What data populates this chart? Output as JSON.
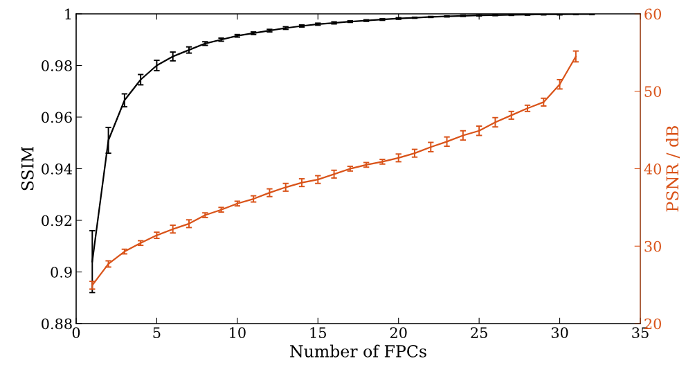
{
  "chart_data": {
    "type": "line",
    "xlabel": "Number of FPCs",
    "ylabel": "SSIM",
    "y2label": "PSNR / dB",
    "xlim": [
      0,
      35
    ],
    "xticks": [
      0,
      5,
      10,
      15,
      20,
      25,
      30,
      35
    ],
    "ylim": [
      0.88,
      1
    ],
    "yticks": [
      0.88,
      0.9,
      0.92,
      0.94,
      0.96,
      0.98,
      1
    ],
    "y2lim": [
      20,
      60
    ],
    "y2ticks": [
      20,
      30,
      40,
      50,
      60
    ],
    "grid": false,
    "legend": false,
    "marker": "none",
    "line_style": "solid",
    "series": [
      {
        "color": "#000000",
        "x": [
          1,
          2,
          3,
          4,
          5,
          6,
          7,
          8,
          9,
          10,
          11,
          12,
          13,
          14,
          15,
          16,
          17,
          18,
          19,
          20,
          21,
          22,
          23,
          24,
          25,
          26,
          27,
          28,
          29,
          30,
          31,
          32
        ],
        "values": [
          0.904,
          0.951,
          0.9665,
          0.9745,
          0.98,
          0.9835,
          0.986,
          0.9885,
          0.99,
          0.9915,
          0.9925,
          0.9935,
          0.9945,
          0.9953,
          0.996,
          0.9965,
          0.997,
          0.9974,
          0.9978,
          0.9982,
          0.9985,
          0.9988,
          0.999,
          0.9992,
          0.9994,
          0.9995,
          0.9996,
          0.9997,
          0.9998,
          0.9998,
          0.9999,
          0.9999
        ],
        "errors": [
          0.012,
          0.005,
          0.0025,
          0.002,
          0.002,
          0.0017,
          0.0012,
          0.0007,
          0.0006,
          0.0005,
          0.0005,
          0.0005,
          0.0005,
          0.0004,
          0.0004,
          0.0004,
          0.0003,
          0.0003,
          0.0003,
          0.0003,
          0.0002,
          0.0002,
          0.0002,
          0.0002,
          0.0002,
          0.0002,
          0.0002,
          0.0002,
          0.0002,
          0.0002,
          0.0002,
          0.0002
        ]
      },
      {
        "color": "#d95319",
        "axis": "y2",
        "x": [
          1,
          2,
          3,
          4,
          5,
          6,
          7,
          8,
          9,
          10,
          11,
          12,
          13,
          14,
          15,
          16,
          17,
          18,
          19,
          20,
          21,
          22,
          23,
          24,
          25,
          26,
          27,
          28,
          29,
          30,
          31
        ],
        "values": [
          24.95,
          27.7,
          29.3,
          30.4,
          31.4,
          32.2,
          32.9,
          34.0,
          34.7,
          35.5,
          36.1,
          36.9,
          37.6,
          38.2,
          38.6,
          39.3,
          40.0,
          40.5,
          40.9,
          41.4,
          42.0,
          42.8,
          43.5,
          44.3,
          44.9,
          46.0,
          46.9,
          47.8,
          48.6,
          50.9,
          54.5
        ],
        "errors": [
          0.5,
          0.4,
          0.3,
          0.3,
          0.4,
          0.5,
          0.5,
          0.3,
          0.3,
          0.3,
          0.4,
          0.5,
          0.5,
          0.5,
          0.5,
          0.5,
          0.3,
          0.3,
          0.3,
          0.5,
          0.5,
          0.6,
          0.6,
          0.6,
          0.6,
          0.6,
          0.5,
          0.4,
          0.5,
          0.6,
          0.7
        ]
      }
    ]
  }
}
